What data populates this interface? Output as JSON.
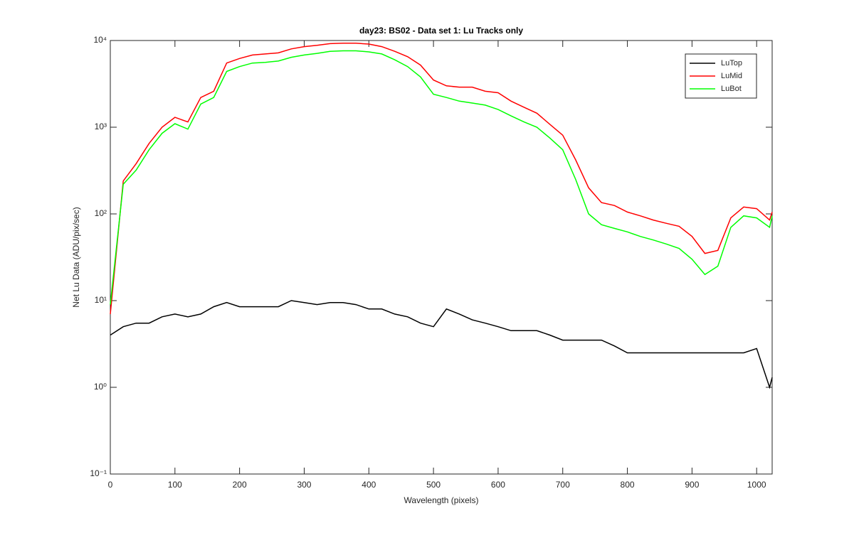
{
  "chart_data": {
    "type": "line",
    "title": "day23: BS02 - Data set 1: Lu Tracks only",
    "x_label": "Wavelength (pixels)",
    "y_label": "Net Lu Data (ADU/pix/sec)",
    "log_y": true,
    "legend": "top-right",
    "xlim": [
      0,
      1024
    ],
    "ylim": [
      0.1,
      10000
    ],
    "xticks": [
      0,
      100,
      200,
      300,
      400,
      500,
      600,
      700,
      800,
      900,
      1000
    ],
    "yticks": [
      {
        "value": 0.1,
        "label": "10⁻¹"
      },
      {
        "value": 1,
        "label": "10⁰"
      },
      {
        "value": 10,
        "label": "10¹"
      },
      {
        "value": 100,
        "label": "10²"
      },
      {
        "value": 1000,
        "label": "10³"
      },
      {
        "value": 10000,
        "label": "10⁴"
      }
    ],
    "x": [
      0,
      20,
      40,
      60,
      80,
      100,
      120,
      140,
      160,
      180,
      200,
      220,
      240,
      260,
      280,
      300,
      320,
      340,
      360,
      380,
      400,
      420,
      440,
      460,
      480,
      500,
      520,
      540,
      560,
      580,
      600,
      620,
      640,
      660,
      680,
      700,
      720,
      740,
      760,
      780,
      800,
      820,
      840,
      860,
      880,
      900,
      920,
      940,
      960,
      980,
      1000,
      1020,
      1024
    ],
    "series": [
      {
        "name": "LuTop",
        "color": "#000000",
        "values": [
          4,
          5,
          5.5,
          5.5,
          6.5,
          7,
          6.5,
          7,
          8.5,
          9.5,
          8.5,
          8.5,
          8.5,
          8.5,
          10,
          9.5,
          9,
          9.5,
          9.5,
          9,
          8,
          8,
          7,
          6.5,
          5.5,
          5,
          8,
          7,
          6,
          5.5,
          5,
          4.5,
          4.5,
          4.5,
          4,
          3.5,
          3.5,
          3.5,
          3.5,
          3,
          2.5,
          2.5,
          2.5,
          2.5,
          2.5,
          2.5,
          2.5,
          2.5,
          2.5,
          2.5,
          2.8,
          1.0,
          1.3
        ]
      },
      {
        "name": "LuMid",
        "color": "#ff0000",
        "values": [
          7,
          240,
          380,
          650,
          1000,
          1300,
          1150,
          2200,
          2600,
          5500,
          6200,
          6800,
          7000,
          7200,
          8000,
          8500,
          8800,
          9200,
          9300,
          9300,
          9100,
          8500,
          7500,
          6500,
          5200,
          3500,
          3000,
          2900,
          2900,
          2600,
          2500,
          2000,
          1700,
          1450,
          1080,
          810,
          420,
          200,
          135,
          125,
          105,
          95,
          85,
          78,
          72,
          55,
          35,
          38,
          90,
          120,
          115,
          85,
          105
        ]
      },
      {
        "name": "LuBot",
        "color": "#00ff00",
        "values": [
          9,
          220,
          320,
          550,
          850,
          1100,
          950,
          1850,
          2200,
          4400,
          5000,
          5500,
          5600,
          5800,
          6400,
          6800,
          7100,
          7500,
          7600,
          7600,
          7400,
          7000,
          6000,
          5000,
          3800,
          2400,
          2200,
          2000,
          1900,
          1800,
          1600,
          1350,
          1150,
          1000,
          750,
          550,
          250,
          100,
          75,
          68,
          62,
          55,
          50,
          45,
          40,
          30,
          20,
          25,
          70,
          95,
          90,
          70,
          95
        ]
      }
    ]
  }
}
